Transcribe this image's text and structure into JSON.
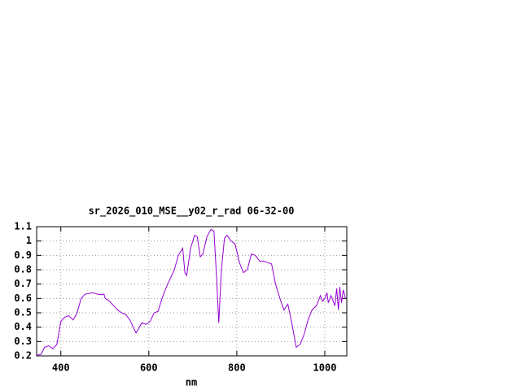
{
  "chart_data": {
    "type": "line",
    "title": "sr_2026_010_MSE__y02_r_rad 06-32-00",
    "x_label": "nm",
    "x": [
      345,
      355,
      363,
      372,
      382,
      391,
      400,
      409,
      418,
      428,
      437,
      446,
      455,
      465,
      474,
      483,
      492,
      498,
      501,
      511,
      520,
      529,
      538,
      547,
      557,
      566,
      571,
      575,
      584,
      594,
      603,
      612,
      621,
      630,
      640,
      649,
      658,
      667,
      677,
      682,
      686,
      695,
      704,
      710,
      717,
      723,
      732,
      741,
      748,
      754,
      759,
      765,
      772,
      778,
      787,
      796,
      806,
      815,
      824,
      833,
      842,
      852,
      861,
      870,
      879,
      888,
      898,
      907,
      916,
      925,
      935,
      944,
      953,
      962,
      971,
      981,
      990,
      995,
      1000,
      1005,
      1008,
      1014,
      1018,
      1023,
      1027,
      1031,
      1034,
      1038,
      1042,
      1047
    ],
    "series": [
      {
        "name": "sr_2026_010_MSE__y02_r_rad",
        "color": "#9400d3",
        "values": [
          0.205,
          0.21,
          0.26,
          0.27,
          0.25,
          0.28,
          0.44,
          0.47,
          0.48,
          0.45,
          0.5,
          0.6,
          0.63,
          0.635,
          0.64,
          0.63,
          0.625,
          0.63,
          0.6,
          0.58,
          0.55,
          0.52,
          0.5,
          0.49,
          0.45,
          0.39,
          0.36,
          0.38,
          0.43,
          0.42,
          0.44,
          0.5,
          0.51,
          0.6,
          0.68,
          0.74,
          0.8,
          0.9,
          0.95,
          0.78,
          0.76,
          0.95,
          1.04,
          1.03,
          0.89,
          0.91,
          1.03,
          1.08,
          1.07,
          0.75,
          0.43,
          0.8,
          1.02,
          1.04,
          1.0,
          0.98,
          0.85,
          0.78,
          0.8,
          0.91,
          0.9,
          0.86,
          0.86,
          0.85,
          0.84,
          0.7,
          0.6,
          0.52,
          0.56,
          0.43,
          0.26,
          0.28,
          0.35,
          0.45,
          0.52,
          0.55,
          0.62,
          0.58,
          0.6,
          0.64,
          0.57,
          0.62,
          0.59,
          0.55,
          0.67,
          0.52,
          0.68,
          0.57,
          0.66,
          0.6
        ]
      }
    ],
    "xlim": [
      345,
      1050
    ],
    "xticks": [
      400,
      600,
      800,
      1000
    ],
    "ylim": [
      0.2,
      1.1
    ],
    "yticks": [
      0.2,
      0.3,
      0.4,
      0.5,
      0.6,
      0.7,
      0.8,
      0.9,
      1,
      1.1
    ],
    "grid": true
  }
}
